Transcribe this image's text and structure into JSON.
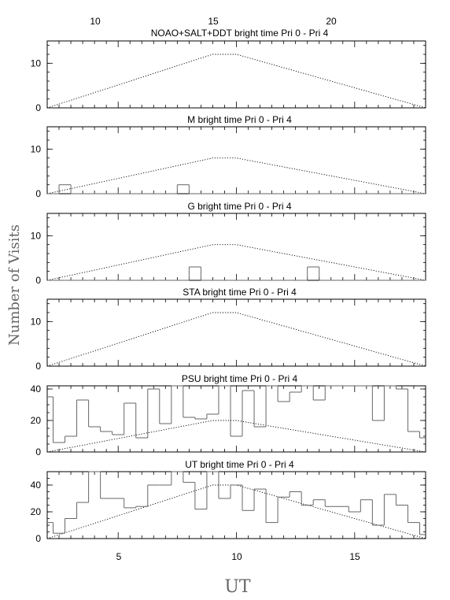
{
  "figure": {
    "xlabel": "UT",
    "ylabel": "Number of Visits",
    "top_axis_ticks": [
      "10",
      "15",
      "20"
    ],
    "bottom_axis_ticks": [
      "5",
      "10",
      "15"
    ]
  },
  "chart_data": [
    {
      "type": "line",
      "title": "NOAO+SALT+DDT    bright time Pri 0 - Pri 4",
      "ylim": [
        0,
        15
      ],
      "yticks": [
        0,
        10
      ],
      "ytick_labels": [
        "0",
        "10"
      ],
      "xlim": [
        2,
        18
      ],
      "series": [
        {
          "style": "dotted",
          "x": [
            2,
            9,
            10,
            18
          ],
          "y": [
            0,
            12,
            12,
            0
          ]
        }
      ],
      "histogram": []
    },
    {
      "type": "line",
      "title": "M    bright time Pri 0 - Pri 4",
      "ylim": [
        0,
        15
      ],
      "yticks": [
        0,
        10
      ],
      "ytick_labels": [
        "0",
        "10"
      ],
      "xlim": [
        2,
        18
      ],
      "series": [
        {
          "style": "dotted",
          "x": [
            2,
            9,
            10,
            18
          ],
          "y": [
            0,
            8,
            8,
            0
          ]
        }
      ],
      "histogram": [
        {
          "x0": 2.0,
          "x1": 2.5,
          "y": 0
        },
        {
          "x0": 2.5,
          "x1": 3.0,
          "y": 2
        },
        {
          "x0": 3.0,
          "x1": 7.5,
          "y": 0
        },
        {
          "x0": 7.5,
          "x1": 8.0,
          "y": 2
        },
        {
          "x0": 8.0,
          "x1": 18.0,
          "y": 0
        }
      ]
    },
    {
      "type": "line",
      "title": "G    bright time Pri 0 - Pri 4",
      "ylim": [
        0,
        15
      ],
      "yticks": [
        0,
        10
      ],
      "ytick_labels": [
        "0",
        "10"
      ],
      "xlim": [
        2,
        18
      ],
      "series": [
        {
          "style": "dotted",
          "x": [
            2,
            9,
            10,
            18
          ],
          "y": [
            0,
            8,
            8,
            0
          ]
        }
      ],
      "histogram": [
        {
          "x0": 2.0,
          "x1": 8.0,
          "y": 0
        },
        {
          "x0": 8.0,
          "x1": 8.5,
          "y": 3
        },
        {
          "x0": 8.5,
          "x1": 13.0,
          "y": 0
        },
        {
          "x0": 13.0,
          "x1": 13.5,
          "y": 3
        },
        {
          "x0": 13.5,
          "x1": 18.0,
          "y": 0
        }
      ]
    },
    {
      "type": "line",
      "title": "STA    bright time Pri 0 - Pri 4",
      "ylim": [
        0,
        15
      ],
      "yticks": [
        0,
        10
      ],
      "ytick_labels": [
        "0",
        "10"
      ],
      "xlim": [
        2,
        18
      ],
      "series": [
        {
          "style": "dotted",
          "x": [
            2,
            9,
            10,
            18
          ],
          "y": [
            0,
            12,
            12,
            0
          ]
        }
      ],
      "histogram": []
    },
    {
      "type": "line",
      "title": "PSU    bright time Pri 0 - Pri 4",
      "ylim": [
        0,
        42
      ],
      "yticks": [
        0,
        20,
        40
      ],
      "ytick_labels": [
        "0",
        "20",
        "40"
      ],
      "xlim": [
        2,
        18
      ],
      "series": [
        {
          "style": "dotted",
          "x": [
            2,
            9,
            10,
            18
          ],
          "y": [
            0,
            20,
            20,
            0
          ]
        }
      ],
      "histogram": [
        {
          "x0": 2.0,
          "x1": 2.25,
          "y": 35
        },
        {
          "x0": 2.25,
          "x1": 2.75,
          "y": 6
        },
        {
          "x0": 2.75,
          "x1": 3.25,
          "y": 10
        },
        {
          "x0": 3.25,
          "x1": 3.75,
          "y": 33
        },
        {
          "x0": 3.75,
          "x1": 4.25,
          "y": 16
        },
        {
          "x0": 4.25,
          "x1": 4.75,
          "y": 13
        },
        {
          "x0": 4.75,
          "x1": 5.25,
          "y": 11
        },
        {
          "x0": 5.25,
          "x1": 5.75,
          "y": 31
        },
        {
          "x0": 5.75,
          "x1": 6.25,
          "y": 9
        },
        {
          "x0": 6.25,
          "x1": 6.75,
          "y": 40
        },
        {
          "x0": 6.75,
          "x1": 7.25,
          "y": 18
        },
        {
          "x0": 7.25,
          "x1": 7.75,
          "y": 42
        },
        {
          "x0": 7.75,
          "x1": 8.25,
          "y": 22
        },
        {
          "x0": 8.25,
          "x1": 8.75,
          "y": 21
        },
        {
          "x0": 8.75,
          "x1": 9.25,
          "y": 24
        },
        {
          "x0": 9.25,
          "x1": 9.75,
          "y": 42
        },
        {
          "x0": 9.75,
          "x1": 10.25,
          "y": 10
        },
        {
          "x0": 10.25,
          "x1": 10.75,
          "y": 39
        },
        {
          "x0": 10.75,
          "x1": 11.25,
          "y": 16
        },
        {
          "x0": 11.25,
          "x1": 11.75,
          "y": 42
        },
        {
          "x0": 11.75,
          "x1": 12.25,
          "y": 32
        },
        {
          "x0": 12.25,
          "x1": 12.75,
          "y": 38
        },
        {
          "x0": 12.75,
          "x1": 13.25,
          "y": 42
        },
        {
          "x0": 13.25,
          "x1": 13.75,
          "y": 33
        },
        {
          "x0": 13.75,
          "x1": 15.75,
          "y": 42
        },
        {
          "x0": 15.75,
          "x1": 16.25,
          "y": 20
        },
        {
          "x0": 16.25,
          "x1": 16.75,
          "y": 42
        },
        {
          "x0": 16.75,
          "x1": 17.25,
          "y": 40
        },
        {
          "x0": 17.25,
          "x1": 17.75,
          "y": 13
        },
        {
          "x0": 17.75,
          "x1": 18.0,
          "y": 9
        }
      ]
    },
    {
      "type": "line",
      "title": "UT    bright time Pri 0 - Pri 4",
      "ylim": [
        0,
        50
      ],
      "yticks": [
        0,
        20,
        40
      ],
      "ytick_labels": [
        "0",
        "20",
        "40"
      ],
      "xlim": [
        2,
        18
      ],
      "series": [
        {
          "style": "dotted",
          "x": [
            2,
            9,
            10,
            18
          ],
          "y": [
            0,
            40,
            40,
            0
          ]
        }
      ],
      "histogram": [
        {
          "x0": 2.0,
          "x1": 2.25,
          "y": 12
        },
        {
          "x0": 2.25,
          "x1": 2.75,
          "y": 4
        },
        {
          "x0": 2.75,
          "x1": 3.25,
          "y": 15
        },
        {
          "x0": 3.25,
          "x1": 3.75,
          "y": 27
        },
        {
          "x0": 3.75,
          "x1": 4.25,
          "y": 50
        },
        {
          "x0": 4.25,
          "x1": 5.25,
          "y": 30
        },
        {
          "x0": 5.25,
          "x1": 5.75,
          "y": 23
        },
        {
          "x0": 5.75,
          "x1": 6.25,
          "y": 24
        },
        {
          "x0": 6.25,
          "x1": 6.75,
          "y": 40
        },
        {
          "x0": 6.75,
          "x1": 7.25,
          "y": 40
        },
        {
          "x0": 7.25,
          "x1": 7.75,
          "y": 50
        },
        {
          "x0": 7.75,
          "x1": 8.25,
          "y": 42
        },
        {
          "x0": 8.25,
          "x1": 8.75,
          "y": 22
        },
        {
          "x0": 8.75,
          "x1": 9.25,
          "y": 50
        },
        {
          "x0": 9.25,
          "x1": 9.75,
          "y": 30
        },
        {
          "x0": 9.75,
          "x1": 10.25,
          "y": 40
        },
        {
          "x0": 10.25,
          "x1": 10.75,
          "y": 21
        },
        {
          "x0": 10.75,
          "x1": 11.25,
          "y": 37
        },
        {
          "x0": 11.25,
          "x1": 11.75,
          "y": 12
        },
        {
          "x0": 11.75,
          "x1": 12.25,
          "y": 31
        },
        {
          "x0": 12.25,
          "x1": 12.75,
          "y": 35
        },
        {
          "x0": 12.75,
          "x1": 13.25,
          "y": 25
        },
        {
          "x0": 13.25,
          "x1": 13.75,
          "y": 29
        },
        {
          "x0": 13.75,
          "x1": 14.75,
          "y": 24
        },
        {
          "x0": 14.75,
          "x1": 15.25,
          "y": 20
        },
        {
          "x0": 15.25,
          "x1": 15.75,
          "y": 29
        },
        {
          "x0": 15.75,
          "x1": 16.25,
          "y": 10
        },
        {
          "x0": 16.25,
          "x1": 16.75,
          "y": 33
        },
        {
          "x0": 16.75,
          "x1": 17.25,
          "y": 25
        },
        {
          "x0": 17.25,
          "x1": 17.75,
          "y": 12
        },
        {
          "x0": 17.75,
          "x1": 18.0,
          "y": 3
        }
      ]
    }
  ]
}
